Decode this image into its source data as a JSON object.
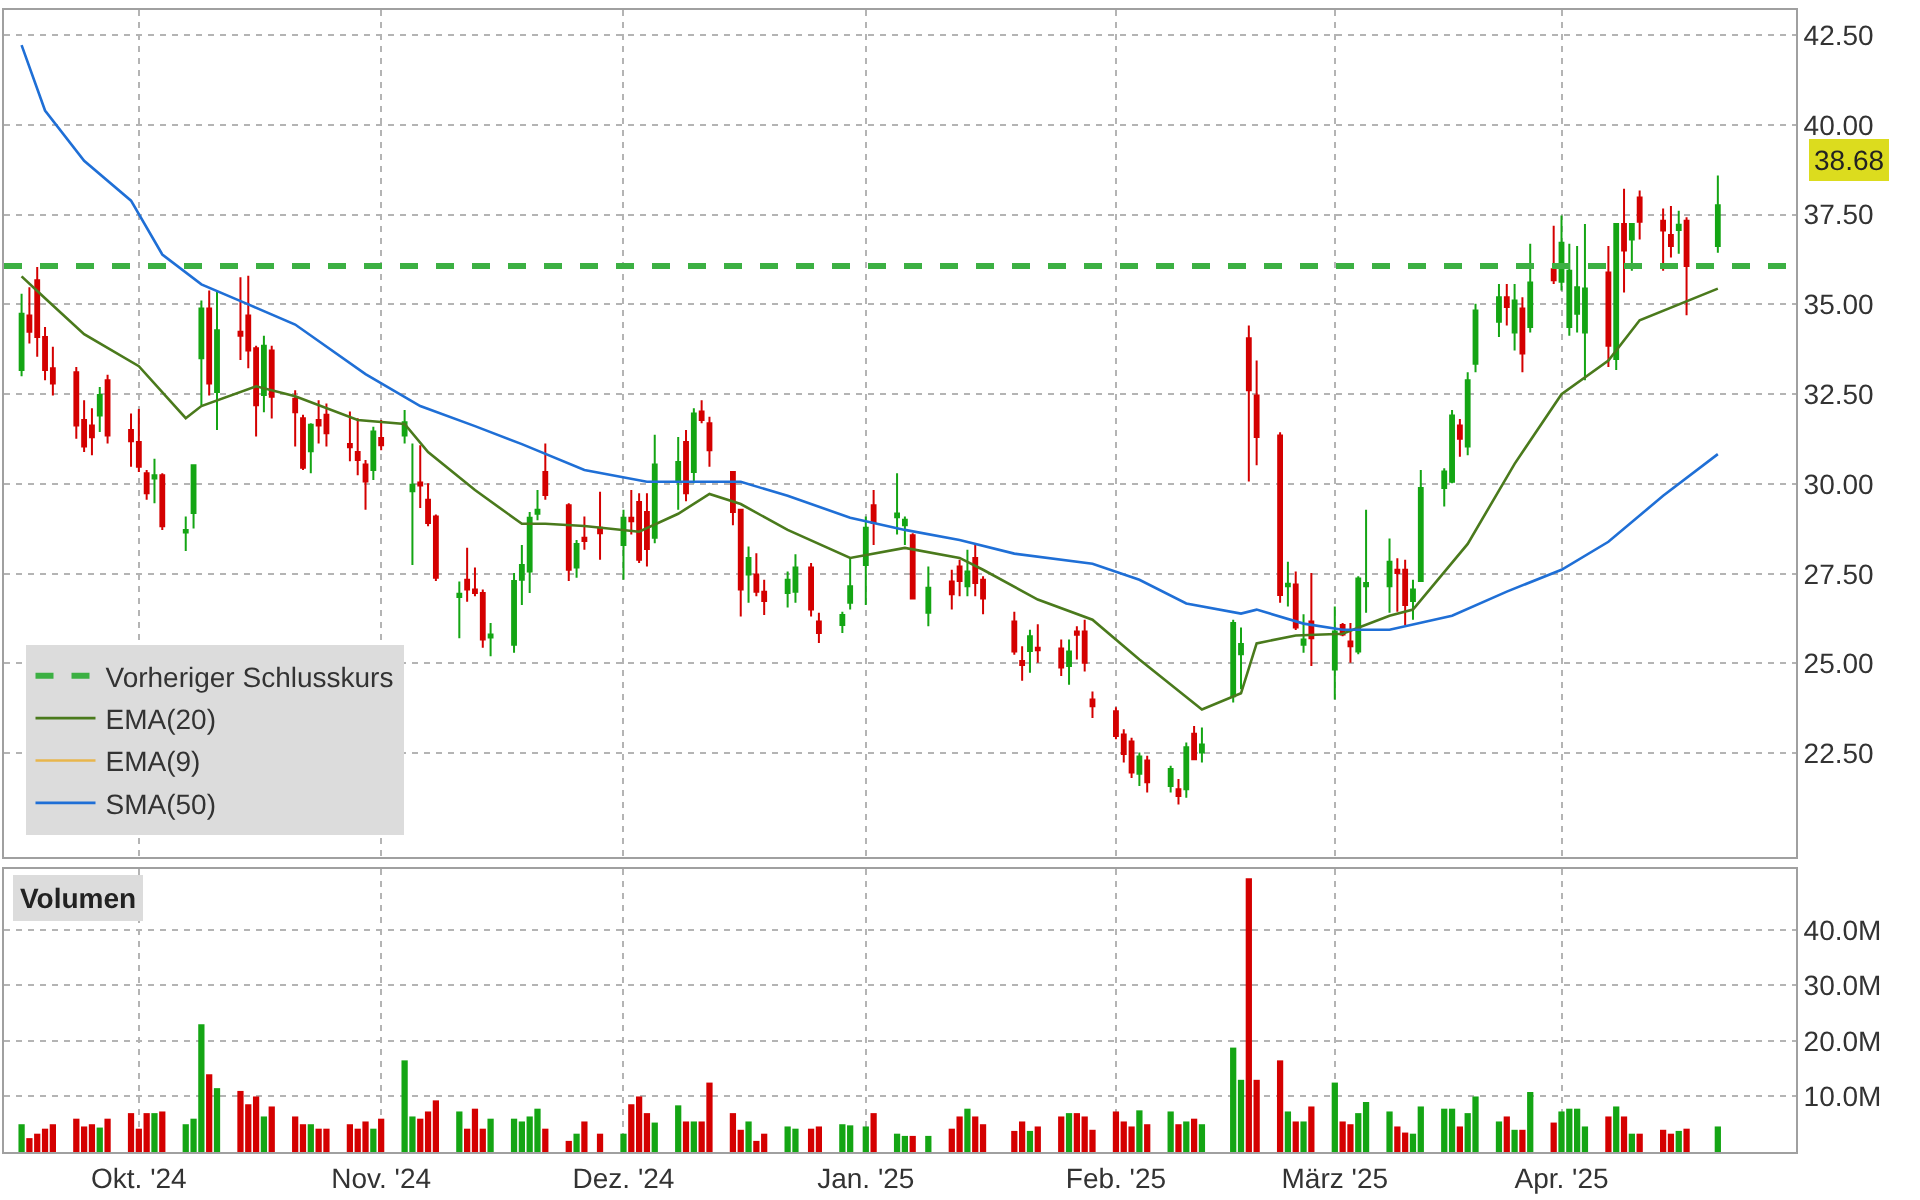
{
  "chart_data": [
    {
      "type": "candlestick",
      "x": [
        "2024-09-16",
        "2024-09-17",
        "2024-09-18",
        "2024-09-19",
        "2024-09-20",
        "2024-09-23",
        "2024-09-24",
        "2024-09-25",
        "2024-09-26",
        "2024-09-27",
        "2024-09-30",
        "2024-10-01",
        "2024-10-02",
        "2024-10-03",
        "2024-10-04",
        "2024-10-07",
        "2024-10-08",
        "2024-10-09",
        "2024-10-10",
        "2024-10-11",
        "2024-10-14",
        "2024-10-15",
        "2024-10-16",
        "2024-10-17",
        "2024-10-18",
        "2024-10-21",
        "2024-10-22",
        "2024-10-23",
        "2024-10-24",
        "2024-10-25",
        "2024-10-28",
        "2024-10-29",
        "2024-10-30",
        "2024-10-31",
        "2024-11-01",
        "2024-11-04",
        "2024-11-05",
        "2024-11-06",
        "2024-11-07",
        "2024-11-08",
        "2024-11-11",
        "2024-11-12",
        "2024-11-13",
        "2024-11-14",
        "2024-11-15",
        "2024-11-18",
        "2024-11-19",
        "2024-11-20",
        "2024-11-21",
        "2024-11-22",
        "2024-11-25",
        "2024-11-26",
        "2024-11-27",
        "2024-11-29",
        "2024-12-02",
        "2024-12-03",
        "2024-12-04",
        "2024-12-05",
        "2024-12-06",
        "2024-12-09",
        "2024-12-10",
        "2024-12-11",
        "2024-12-12",
        "2024-12-13",
        "2024-12-16",
        "2024-12-17",
        "2024-12-18",
        "2024-12-19",
        "2024-12-20",
        "2024-12-23",
        "2024-12-24",
        "2024-12-26",
        "2024-12-27",
        "2024-12-30",
        "2024-12-31",
        "2025-01-02",
        "2025-01-03",
        "2025-01-06",
        "2025-01-07",
        "2025-01-08",
        "2025-01-10",
        "2025-01-13",
        "2025-01-14",
        "2025-01-15",
        "2025-01-16",
        "2025-01-17",
        "2025-01-21",
        "2025-01-22",
        "2025-01-23",
        "2025-01-24",
        "2025-01-27",
        "2025-01-28",
        "2025-01-29",
        "2025-01-30",
        "2025-01-31",
        "2025-02-03",
        "2025-02-04",
        "2025-02-05",
        "2025-02-06",
        "2025-02-07",
        "2025-02-10",
        "2025-02-11",
        "2025-02-12",
        "2025-02-13",
        "2025-02-14",
        "2025-02-18",
        "2025-02-19",
        "2025-02-20",
        "2025-02-21",
        "2025-02-24",
        "2025-02-25",
        "2025-02-26",
        "2025-02-27",
        "2025-02-28",
        "2025-03-03",
        "2025-03-04",
        "2025-03-05",
        "2025-03-06",
        "2025-03-07",
        "2025-03-10",
        "2025-03-11",
        "2025-03-12",
        "2025-03-13",
        "2025-03-14",
        "2025-03-17",
        "2025-03-18",
        "2025-03-19",
        "2025-03-20",
        "2025-03-21",
        "2025-03-24",
        "2025-03-25",
        "2025-03-26",
        "2025-03-27",
        "2025-03-28",
        "2025-03-31",
        "2025-04-01",
        "2025-04-02",
        "2025-04-03",
        "2025-04-04",
        "2025-04-07",
        "2025-04-08",
        "2025-04-09",
        "2025-04-10",
        "2025-04-11",
        "2025-04-14",
        "2025-04-15",
        "2025-04-16",
        "2025-04-17",
        "2025-04-21"
      ],
      "ohlc": [
        [
          33.17,
          35.3,
          33.0,
          34.74
        ],
        [
          34.69,
          35.48,
          33.91,
          34.24
        ],
        [
          35.67,
          36.04,
          33.54,
          34.09
        ],
        [
          34.09,
          34.37,
          32.89,
          33.17
        ],
        [
          33.22,
          33.82,
          32.46,
          32.8
        ],
        [
          33.11,
          33.26,
          31.26,
          31.63
        ],
        [
          31.78,
          32.33,
          30.89,
          31.04
        ],
        [
          31.63,
          32.11,
          30.8,
          31.3
        ],
        [
          31.91,
          32.7,
          31.45,
          32.48
        ],
        [
          32.89,
          33.04,
          31.13,
          31.35
        ],
        [
          31.5,
          31.96,
          30.48,
          31.19
        ],
        [
          31.17,
          32.09,
          30.33,
          30.48
        ],
        [
          30.3,
          30.39,
          29.56,
          29.74
        ],
        [
          30.15,
          30.7,
          29.46,
          30.24
        ],
        [
          30.24,
          30.3,
          28.72,
          28.82
        ],
        [
          28.65,
          29.09,
          28.13,
          28.72
        ],
        [
          29.19,
          30.52,
          28.76,
          30.52
        ],
        [
          33.5,
          35.11,
          32.19,
          34.89
        ],
        [
          34.89,
          35.39,
          32.46,
          32.8
        ],
        [
          32.56,
          35.39,
          31.5,
          34.28
        ],
        [
          34.24,
          35.76,
          33.45,
          34.13
        ],
        [
          34.69,
          35.8,
          33.22,
          33.72
        ],
        [
          33.78,
          33.85,
          31.32,
          32.19
        ],
        [
          32.48,
          34.13,
          32.0,
          33.85
        ],
        [
          33.72,
          33.85,
          31.82,
          32.43
        ],
        [
          32.37,
          32.61,
          31.04,
          32.0
        ],
        [
          31.83,
          31.93,
          30.39,
          30.45
        ],
        [
          30.91,
          31.69,
          30.3,
          31.65
        ],
        [
          31.78,
          32.33,
          31.13,
          31.63
        ],
        [
          31.93,
          32.24,
          31.04,
          31.41
        ],
        [
          31.11,
          32.02,
          30.63,
          31.02
        ],
        [
          30.89,
          31.83,
          30.24,
          30.67
        ],
        [
          30.54,
          30.67,
          29.28,
          30.07
        ],
        [
          30.39,
          31.59,
          30.11,
          31.46
        ],
        [
          31.28,
          31.78,
          30.94,
          31.08
        ],
        [
          31.35,
          32.06,
          31.13,
          31.72
        ],
        [
          29.8,
          31.13,
          27.74,
          29.98
        ],
        [
          30.04,
          31.08,
          29.33,
          29.96
        ],
        [
          29.56,
          30.02,
          28.82,
          28.91
        ],
        [
          29.09,
          29.15,
          27.3,
          27.39
        ],
        [
          26.85,
          27.28,
          25.7,
          26.94
        ],
        [
          27.33,
          28.22,
          26.72,
          27.06
        ],
        [
          27.06,
          27.67,
          26.87,
          26.96
        ],
        [
          26.96,
          27.06,
          25.44,
          25.67
        ],
        [
          25.72,
          26.13,
          25.2,
          25.81
        ],
        [
          25.52,
          27.52,
          25.3,
          27.3
        ],
        [
          27.33,
          28.3,
          26.63,
          27.74
        ],
        [
          27.56,
          29.22,
          26.96,
          29.06
        ],
        [
          29.17,
          29.83,
          28.99,
          29.28
        ],
        [
          30.33,
          31.13,
          29.56,
          29.69
        ],
        [
          29.41,
          29.46,
          27.3,
          27.61
        ],
        [
          27.67,
          28.44,
          27.39,
          28.33
        ],
        [
          28.5,
          29.09,
          28.17,
          28.41
        ],
        [
          28.78,
          29.78,
          27.89,
          28.63
        ],
        [
          28.3,
          29.28,
          27.33,
          29.06
        ],
        [
          29.06,
          29.83,
          28.59,
          28.96
        ],
        [
          29.5,
          29.74,
          27.8,
          27.89
        ],
        [
          29.22,
          29.74,
          27.7,
          28.19
        ],
        [
          28.5,
          31.37,
          28.35,
          30.54
        ],
        [
          30.11,
          31.31,
          29.28,
          30.61
        ],
        [
          31.17,
          31.5,
          29.52,
          29.74
        ],
        [
          30.33,
          32.11,
          30.02,
          31.96
        ],
        [
          32.02,
          32.33,
          31.69,
          31.78
        ],
        [
          31.69,
          31.87,
          30.48,
          30.94
        ],
        [
          30.33,
          30.33,
          28.85,
          29.22
        ],
        [
          29.28,
          29.28,
          26.31,
          27.06
        ],
        [
          27.48,
          28.26,
          26.69,
          27.94
        ],
        [
          27.48,
          28.07,
          26.87,
          27.0
        ],
        [
          27.0,
          27.33,
          26.35,
          26.74
        ],
        [
          26.96,
          27.56,
          26.56,
          27.33
        ],
        [
          27.0,
          28.04,
          26.69,
          27.67
        ],
        [
          27.67,
          27.8,
          26.31,
          26.5
        ],
        [
          26.17,
          26.41,
          25.57,
          25.85
        ],
        [
          26.07,
          26.44,
          25.85,
          26.35
        ],
        [
          26.69,
          27.94,
          26.5,
          27.15
        ],
        [
          27.74,
          29.09,
          26.63,
          28.78
        ],
        [
          29.41,
          29.83,
          28.3,
          28.91
        ],
        [
          29.07,
          30.3,
          28.59,
          29.18
        ],
        [
          28.85,
          29.09,
          28.3,
          29.0
        ],
        [
          28.57,
          28.63,
          26.78,
          26.81
        ],
        [
          26.41,
          27.7,
          26.04,
          27.11
        ],
        [
          27.28,
          27.61,
          26.5,
          26.93
        ],
        [
          27.7,
          27.89,
          26.87,
          27.3
        ],
        [
          27.15,
          28.17,
          26.87,
          27.56
        ],
        [
          27.94,
          28.35,
          26.87,
          27.24
        ],
        [
          27.33,
          27.43,
          26.37,
          26.81
        ],
        [
          26.17,
          26.44,
          25.24,
          25.33
        ],
        [
          25.07,
          25.48,
          24.52,
          24.96
        ],
        [
          25.35,
          25.94,
          24.74,
          25.76
        ],
        [
          25.44,
          26.09,
          25.02,
          25.37
        ],
        [
          25.42,
          25.67,
          24.65,
          24.89
        ],
        [
          24.93,
          25.67,
          24.41,
          25.33
        ],
        [
          25.89,
          26.04,
          25.11,
          25.8
        ],
        [
          25.89,
          26.22,
          24.78,
          25.02
        ],
        [
          24.0,
          24.22,
          23.48,
          23.81
        ],
        [
          23.67,
          23.78,
          22.89,
          22.98
        ],
        [
          23.02,
          23.17,
          22.24,
          22.48
        ],
        [
          22.83,
          22.93,
          21.81,
          21.96
        ],
        [
          21.93,
          22.52,
          21.59,
          22.41
        ],
        [
          22.3,
          22.43,
          21.41,
          21.69
        ],
        [
          21.59,
          22.15,
          21.41,
          22.06
        ],
        [
          21.5,
          21.78,
          21.07,
          21.31
        ],
        [
          21.5,
          22.8,
          21.26,
          22.67
        ],
        [
          23.04,
          23.26,
          22.33,
          22.33
        ],
        [
          22.52,
          23.22,
          22.24,
          22.74
        ],
        [
          24.09,
          26.22,
          23.91,
          26.13
        ],
        [
          25.26,
          26.0,
          24.28,
          25.54
        ],
        [
          34.06,
          34.41,
          30.07,
          32.61
        ],
        [
          32.46,
          33.44,
          30.52,
          31.31
        ],
        [
          31.35,
          31.44,
          26.69,
          26.91
        ],
        [
          27.15,
          27.83,
          26.59,
          27.22
        ],
        [
          27.2,
          27.56,
          25.93,
          26.0
        ],
        [
          25.52,
          26.37,
          25.3,
          25.67
        ],
        [
          26.17,
          27.52,
          24.93,
          25.7
        ],
        [
          24.83,
          26.59,
          24.0,
          25.89
        ],
        [
          26.07,
          26.13,
          25.76,
          25.81
        ],
        [
          25.61,
          26.13,
          25.02,
          25.48
        ],
        [
          25.33,
          27.43,
          25.26,
          27.37
        ],
        [
          27.15,
          29.28,
          26.41,
          27.24
        ],
        [
          27.15,
          28.48,
          26.41,
          27.83
        ],
        [
          27.61,
          27.93,
          26.44,
          27.52
        ],
        [
          27.61,
          27.89,
          26.07,
          26.63
        ],
        [
          26.74,
          27.33,
          26.22,
          27.06
        ],
        [
          27.3,
          30.39,
          27.3,
          29.89
        ],
        [
          29.89,
          30.44,
          29.37,
          30.35
        ],
        [
          30.06,
          32.06,
          30.02,
          31.91
        ],
        [
          31.63,
          31.81,
          30.76,
          31.26
        ],
        [
          31.04,
          33.11,
          30.8,
          32.89
        ],
        [
          33.35,
          35.02,
          33.11,
          34.83
        ],
        [
          34.52,
          35.57,
          34.09,
          35.2
        ],
        [
          35.2,
          35.57,
          34.41,
          34.93
        ],
        [
          34.22,
          35.57,
          33.72,
          35.11
        ],
        [
          34.89,
          35.2,
          33.11,
          33.63
        ],
        [
          34.37,
          36.69,
          34.22,
          35.61
        ],
        [
          35.98,
          37.19,
          35.57,
          35.67
        ],
        [
          35.63,
          37.48,
          35.39,
          36.72
        ],
        [
          34.37,
          36.69,
          34.13,
          35.94
        ],
        [
          34.74,
          36.63,
          34.22,
          35.48
        ],
        [
          34.22,
          37.24,
          32.89,
          35.44
        ],
        [
          35.89,
          36.63,
          33.26,
          33.85
        ],
        [
          33.48,
          37.24,
          33.17,
          37.24
        ],
        [
          37.24,
          38.22,
          35.33,
          36.5
        ],
        [
          36.81,
          37.24,
          35.94,
          37.24
        ],
        [
          37.98,
          38.17,
          36.81,
          37.3
        ],
        [
          37.33,
          37.67,
          35.94,
          37.06
        ],
        [
          36.93,
          37.74,
          36.31,
          36.63
        ],
        [
          37.07,
          37.61,
          36.41,
          37.22
        ],
        [
          37.33,
          37.43,
          34.7,
          36.07
        ],
        [
          36.63,
          38.59,
          36.44,
          37.76
        ]
      ],
      "colors": [
        "#14a514",
        "#d40000",
        "#d40000",
        "#d40000",
        "#d40000",
        "#d40000",
        "#d40000",
        "#d40000",
        "#14a514",
        "#d40000",
        "#d40000",
        "#d40000",
        "#d40000",
        "#14a514",
        "#d40000",
        "#14a514",
        "#14a514",
        "#14a514",
        "#d40000",
        "#14a514",
        "#d40000",
        "#d40000",
        "#d40000",
        "#14a514",
        "#d40000",
        "#d40000",
        "#d40000",
        "#14a514",
        "#d40000",
        "#d40000",
        "#d40000",
        "#d40000",
        "#d40000",
        "#14a514",
        "#d40000",
        "#14a514",
        "#14a514",
        "#d40000",
        "#d40000",
        "#d40000",
        "#14a514",
        "#d40000",
        "#d40000",
        "#d40000",
        "#14a514",
        "#14a514",
        "#14a514",
        "#14a514",
        "#14a514",
        "#d40000",
        "#d40000",
        "#14a514",
        "#d40000",
        "#d40000",
        "#14a514",
        "#d40000",
        "#d40000",
        "#d40000",
        "#14a514",
        "#14a514",
        "#d40000",
        "#14a514",
        "#d40000",
        "#d40000",
        "#d40000",
        "#d40000",
        "#14a514",
        "#d40000",
        "#d40000",
        "#14a514",
        "#14a514",
        "#d40000",
        "#d40000",
        "#14a514",
        "#14a514",
        "#14a514",
        "#d40000",
        "#14a514",
        "#14a514",
        "#d40000",
        "#14a514",
        "#d40000",
        "#d40000",
        "#14a514",
        "#d40000",
        "#d40000",
        "#d40000",
        "#d40000",
        "#14a514",
        "#d40000",
        "#d40000",
        "#14a514",
        "#d40000",
        "#d40000",
        "#d40000",
        "#d40000",
        "#d40000",
        "#d40000",
        "#14a514",
        "#d40000",
        "#14a514",
        "#d40000",
        "#14a514",
        "#d40000",
        "#14a514",
        "#14a514",
        "#14a514",
        "#d40000",
        "#d40000",
        "#d40000",
        "#14a514",
        "#d40000",
        "#14a514",
        "#d40000",
        "#14a514",
        "#d40000",
        "#d40000",
        "#14a514",
        "#14a514",
        "#14a514",
        "#d40000",
        "#d40000",
        "#14a514",
        "#14a514",
        "#14a514",
        "#14a514",
        "#d40000",
        "#14a514",
        "#14a514",
        "#14a514",
        "#d40000",
        "#14a514",
        "#d40000",
        "#14a514",
        "#d40000",
        "#14a514",
        "#14a514",
        "#14a514",
        "#14a514",
        "#d40000",
        "#14a514",
        "#d40000",
        "#14a514",
        "#d40000",
        "#d40000",
        "#d40000",
        "#14a514",
        "#d40000",
        "#14a514"
      ],
      "series": [
        {
          "name": "EMA(20)",
          "type": "line",
          "color": "#4a7a1c",
          "x": [
            "2024-09-16",
            "2024-09-19",
            "2024-09-24",
            "2024-10-01",
            "2024-10-07",
            "2024-10-09",
            "2024-10-16",
            "2024-10-21",
            "2024-10-29",
            "2024-11-04",
            "2024-11-07",
            "2024-11-13",
            "2024-11-19",
            "2024-11-22",
            "2024-11-27",
            "2024-12-04",
            "2024-12-09",
            "2024-12-13",
            "2024-12-17",
            "2024-12-23",
            "2024-12-31",
            "2025-01-07",
            "2025-01-14",
            "2025-01-17",
            "2025-01-24",
            "2025-01-31",
            "2025-02-06",
            "2025-02-14",
            "2025-02-19",
            "2025-02-21",
            "2025-02-26",
            "2025-03-04",
            "2025-03-10",
            "2025-03-13",
            "2025-03-20",
            "2025-03-26",
            "2025-04-01",
            "2025-04-07",
            "2025-04-11",
            "2025-04-21"
          ],
          "values": [
            35.78,
            35.17,
            34.17,
            33.28,
            31.83,
            32.17,
            32.72,
            32.44,
            31.78,
            31.67,
            30.89,
            29.83,
            28.89,
            28.89,
            28.83,
            28.67,
            29.17,
            29.72,
            29.44,
            28.72,
            27.94,
            28.22,
            27.94,
            27.61,
            26.78,
            26.22,
            25.11,
            23.72,
            24.17,
            25.56,
            25.78,
            25.83,
            26.33,
            26.5,
            28.33,
            30.56,
            32.5,
            33.44,
            34.56,
            35.44
          ]
        },
        {
          "name": "EMA(9)",
          "type": "line",
          "color": "#e8b64c",
          "values": [
            null,
            null,
            null,
            null,
            null,
            null,
            null,
            null,
            null,
            null,
            null,
            null,
            null,
            null,
            null,
            null,
            null,
            null,
            null,
            null,
            null,
            null,
            null,
            null,
            null,
            null,
            null,
            null,
            null,
            null,
            null,
            null,
            null,
            null,
            null,
            null,
            null,
            null,
            null,
            null,
            null,
            null,
            null,
            null,
            null,
            null,
            null,
            null,
            null,
            null,
            null,
            null,
            null,
            null,
            null,
            null,
            null,
            null,
            null,
            null,
            null,
            null,
            null,
            null,
            null,
            null,
            null,
            null,
            null,
            null,
            null,
            null,
            null,
            null,
            null,
            null,
            null,
            null,
            null,
            null,
            null,
            null,
            null,
            null,
            null,
            null,
            null,
            null,
            null,
            null,
            null,
            null,
            null,
            null,
            null,
            null,
            null,
            null,
            null,
            null,
            null,
            null,
            null,
            null,
            null,
            null,
            null,
            null,
            null,
            null,
            null,
            null,
            null,
            null,
            null,
            null,
            null,
            null,
            null,
            null,
            null,
            null,
            null,
            null,
            null,
            null,
            null,
            null,
            null,
            null,
            null,
            null,
            null,
            null,
            null,
            null,
            null,
            null,
            null,
            null,
            null,
            null,
            null,
            null,
            null,
            null,
            null,
            null,
            null
          ]
        },
        {
          "name": "SMA(50)",
          "type": "line",
          "color": "#1f6fd6",
          "x": [
            "2024-09-16",
            "2024-09-19",
            "2024-09-24",
            "2024-09-30",
            "2024-10-04",
            "2024-10-09",
            "2024-10-15",
            "2024-10-21",
            "2024-10-30",
            "2024-11-06",
            "2024-11-13",
            "2024-11-19",
            "2024-11-27",
            "2024-12-05",
            "2024-12-12",
            "2024-12-17",
            "2024-12-23",
            "2024-12-31",
            "2025-01-07",
            "2025-01-14",
            "2025-01-21",
            "2025-01-31",
            "2025-02-06",
            "2025-02-12",
            "2025-02-19",
            "2025-02-21",
            "2025-02-27",
            "2025-03-04",
            "2025-03-10",
            "2025-03-18",
            "2025-03-25",
            "2025-04-01",
            "2025-04-07",
            "2025-04-14",
            "2025-04-21"
          ],
          "values": [
            42.22,
            40.4,
            39.0,
            37.89,
            36.39,
            35.56,
            35.0,
            34.44,
            33.06,
            32.17,
            31.61,
            31.11,
            30.39,
            30.06,
            30.06,
            30.06,
            29.67,
            29.06,
            28.72,
            28.44,
            28.06,
            27.78,
            27.33,
            26.67,
            26.39,
            26.5,
            26.11,
            25.94,
            25.94,
            26.33,
            27.0,
            27.61,
            28.39,
            29.67,
            30.83
          ]
        }
      ],
      "ref_lines": [
        {
          "axis": "y",
          "value": 36.07,
          "label": "Vorheriger Schlusskurs",
          "color": "#3cb043",
          "line_style": "dashed"
        }
      ],
      "annotations": [
        "38.68"
      ],
      "xlim": [
        "2024-09-13T18:00",
        "2025-05-01"
      ],
      "xticks": [
        {
          "value": "2024-10-01",
          "label": null
        },
        {
          "value": "2024-11-01",
          "label": null
        },
        {
          "value": "2024-12-02",
          "label": null
        },
        {
          "value": "2025-01-02",
          "label": null
        },
        {
          "value": "2025-02-03",
          "label": null
        },
        {
          "value": "2025-03-03",
          "label": null
        },
        {
          "value": "2025-04-01",
          "label": null
        }
      ],
      "ylim": [
        19.6,
        43.2
      ],
      "yticks": [
        {
          "value": 22.5,
          "label": "22.50"
        },
        {
          "value": 25,
          "label": "25.00"
        },
        {
          "value": 27.5,
          "label": "27.50"
        },
        {
          "value": 30,
          "label": "30.00"
        },
        {
          "value": 32.5,
          "label": "32.50"
        },
        {
          "value": 35,
          "label": "35.00"
        },
        {
          "value": 37.5,
          "label": "37.50"
        },
        {
          "value": 40,
          "label": "40.00"
        },
        {
          "value": 42.5,
          "label": "42.50"
        }
      ],
      "tick_labels": "y",
      "grid": true,
      "legend": "bottom left"
    },
    {
      "type": "bar",
      "title": "Volumen",
      "x": [
        "2024-09-16",
        "2024-09-17",
        "2024-09-18",
        "2024-09-19",
        "2024-09-20",
        "2024-09-23",
        "2024-09-24",
        "2024-09-25",
        "2024-09-26",
        "2024-09-27",
        "2024-09-30",
        "2024-10-01",
        "2024-10-02",
        "2024-10-03",
        "2024-10-04",
        "2024-10-07",
        "2024-10-08",
        "2024-10-09",
        "2024-10-10",
        "2024-10-11",
        "2024-10-14",
        "2024-10-15",
        "2024-10-16",
        "2024-10-17",
        "2024-10-18",
        "2024-10-21",
        "2024-10-22",
        "2024-10-23",
        "2024-10-24",
        "2024-10-25",
        "2024-10-28",
        "2024-10-29",
        "2024-10-30",
        "2024-10-31",
        "2024-11-01",
        "2024-11-04",
        "2024-11-05",
        "2024-11-06",
        "2024-11-07",
        "2024-11-08",
        "2024-11-11",
        "2024-11-12",
        "2024-11-13",
        "2024-11-14",
        "2024-11-15",
        "2024-11-18",
        "2024-11-19",
        "2024-11-20",
        "2024-11-21",
        "2024-11-22",
        "2024-11-25",
        "2024-11-26",
        "2024-11-27",
        "2024-11-29",
        "2024-12-02",
        "2024-12-03",
        "2024-12-04",
        "2024-12-05",
        "2024-12-06",
        "2024-12-09",
        "2024-12-10",
        "2024-12-11",
        "2024-12-12",
        "2024-12-13",
        "2024-12-16",
        "2024-12-17",
        "2024-12-18",
        "2024-12-19",
        "2024-12-20",
        "2024-12-23",
        "2024-12-24",
        "2024-12-26",
        "2024-12-27",
        "2024-12-30",
        "2024-12-31",
        "2025-01-02",
        "2025-01-03",
        "2025-01-06",
        "2025-01-07",
        "2025-01-08",
        "2025-01-10",
        "2025-01-13",
        "2025-01-14",
        "2025-01-15",
        "2025-01-16",
        "2025-01-17",
        "2025-01-21",
        "2025-01-22",
        "2025-01-23",
        "2025-01-24",
        "2025-01-27",
        "2025-01-28",
        "2025-01-29",
        "2025-01-30",
        "2025-01-31",
        "2025-02-03",
        "2025-02-04",
        "2025-02-05",
        "2025-02-06",
        "2025-02-07",
        "2025-02-10",
        "2025-02-11",
        "2025-02-12",
        "2025-02-13",
        "2025-02-14",
        "2025-02-18",
        "2025-02-19",
        "2025-02-20",
        "2025-02-21",
        "2025-02-24",
        "2025-02-25",
        "2025-02-26",
        "2025-02-27",
        "2025-02-28",
        "2025-03-03",
        "2025-03-04",
        "2025-03-05",
        "2025-03-06",
        "2025-03-07",
        "2025-03-10",
        "2025-03-11",
        "2025-03-12",
        "2025-03-13",
        "2025-03-14",
        "2025-03-17",
        "2025-03-18",
        "2025-03-19",
        "2025-03-20",
        "2025-03-21",
        "2025-03-24",
        "2025-03-25",
        "2025-03-26",
        "2025-03-27",
        "2025-03-28",
        "2025-03-31",
        "2025-04-01",
        "2025-04-02",
        "2025-04-03",
        "2025-04-04",
        "2025-04-07",
        "2025-04-08",
        "2025-04-09",
        "2025-04-10",
        "2025-04-11",
        "2025-04-14",
        "2025-04-15",
        "2025-04-16",
        "2025-04-17",
        "2025-04-21"
      ],
      "values": [
        5,
        2.5,
        3.3,
        4.2,
        5,
        6,
        4.6,
        5,
        4.4,
        6,
        7,
        4.2,
        7,
        7,
        7.3,
        5,
        6,
        23,
        14,
        11.5,
        11,
        8.6,
        10,
        6.4,
        8.2,
        6.4,
        5,
        5,
        4.2,
        4.2,
        5,
        4.2,
        5.5,
        4.2,
        6,
        16.5,
        6.4,
        6,
        7.3,
        9.3,
        7.3,
        4.2,
        7.8,
        4.2,
        6,
        6,
        5.5,
        6.4,
        7.8,
        4.2,
        2,
        3.3,
        5.5,
        3.3,
        3.3,
        8.6,
        10,
        7,
        5.3,
        8.4,
        5.5,
        5.5,
        5.5,
        12.5,
        7,
        4,
        5.5,
        2,
        3.3,
        4.6,
        4.2,
        4.2,
        4.6,
        5,
        4.8,
        4.6,
        7,
        3.3,
        2.9,
        2.9,
        2.9,
        4.2,
        6.4,
        7.8,
        6.4,
        5,
        3.8,
        5.5,
        3.8,
        4.6,
        6.4,
        7,
        7,
        6.4,
        4,
        7.3,
        5.5,
        4.6,
        7.5,
        5,
        7.3,
        5,
        5.5,
        6,
        5,
        18.8,
        13,
        49.3,
        13,
        16.5,
        7.3,
        5.5,
        5.5,
        8.2,
        12.5,
        5.5,
        5,
        7,
        9,
        7.3,
        4.6,
        3.5,
        3.3,
        8.2,
        7.8,
        7.8,
        4.6,
        7,
        10,
        5.5,
        6.4,
        4,
        4,
        10.8,
        5.3,
        7.3,
        7.8,
        7.8,
        4.6,
        6.4,
        8.2,
        6.4,
        3.3,
        3.3,
        4,
        3.3,
        3.8,
        4.2,
        4.6
      ],
      "colors": [
        "#14a514",
        "#d40000",
        "#d40000",
        "#d40000",
        "#d40000",
        "#d40000",
        "#d40000",
        "#d40000",
        "#14a514",
        "#d40000",
        "#d40000",
        "#d40000",
        "#d40000",
        "#14a514",
        "#d40000",
        "#14a514",
        "#14a514",
        "#14a514",
        "#d40000",
        "#14a514",
        "#d40000",
        "#d40000",
        "#d40000",
        "#14a514",
        "#d40000",
        "#d40000",
        "#d40000",
        "#14a514",
        "#d40000",
        "#d40000",
        "#d40000",
        "#d40000",
        "#d40000",
        "#14a514",
        "#d40000",
        "#14a514",
        "#14a514",
        "#d40000",
        "#d40000",
        "#d40000",
        "#14a514",
        "#d40000",
        "#d40000",
        "#d40000",
        "#14a514",
        "#14a514",
        "#14a514",
        "#14a514",
        "#14a514",
        "#d40000",
        "#d40000",
        "#14a514",
        "#d40000",
        "#d40000",
        "#14a514",
        "#d40000",
        "#d40000",
        "#d40000",
        "#14a514",
        "#14a514",
        "#d40000",
        "#14a514",
        "#d40000",
        "#d40000",
        "#d40000",
        "#d40000",
        "#14a514",
        "#d40000",
        "#d40000",
        "#14a514",
        "#14a514",
        "#d40000",
        "#d40000",
        "#14a514",
        "#14a514",
        "#14a514",
        "#d40000",
        "#14a514",
        "#14a514",
        "#d40000",
        "#14a514",
        "#d40000",
        "#d40000",
        "#14a514",
        "#d40000",
        "#d40000",
        "#d40000",
        "#d40000",
        "#14a514",
        "#d40000",
        "#d40000",
        "#14a514",
        "#d40000",
        "#d40000",
        "#d40000",
        "#d40000",
        "#d40000",
        "#d40000",
        "#14a514",
        "#d40000",
        "#14a514",
        "#d40000",
        "#14a514",
        "#d40000",
        "#14a514",
        "#14a514",
        "#14a514",
        "#d40000",
        "#d40000",
        "#d40000",
        "#14a514",
        "#d40000",
        "#14a514",
        "#d40000",
        "#14a514",
        "#d40000",
        "#d40000",
        "#14a514",
        "#14a514",
        "#14a514",
        "#d40000",
        "#d40000",
        "#14a514",
        "#14a514",
        "#14a514",
        "#14a514",
        "#d40000",
        "#14a514",
        "#14a514",
        "#14a514",
        "#d40000",
        "#14a514",
        "#d40000",
        "#14a514",
        "#d40000",
        "#14a514",
        "#14a514",
        "#14a514",
        "#14a514",
        "#d40000",
        "#14a514",
        "#d40000",
        "#14a514",
        "#d40000",
        "#d40000",
        "#d40000",
        "#14a514",
        "#d40000",
        "#14a514"
      ],
      "xlim": [
        "2024-09-13T18:00",
        "2025-05-01"
      ],
      "xticks": [
        {
          "value": "2024-10-01",
          "label": "Okt. '24"
        },
        {
          "value": "2024-11-01",
          "label": "Nov. '24"
        },
        {
          "value": "2024-12-02",
          "label": "Dez. '24"
        },
        {
          "value": "2025-01-02",
          "label": "Jan. '25"
        },
        {
          "value": "2025-02-03",
          "label": "Feb. '25"
        },
        {
          "value": "2025-03-03",
          "label": "März '25"
        },
        {
          "value": "2025-04-01",
          "label": "Apr. '25"
        }
      ],
      "ylim": [
        0,
        51
      ],
      "yticks": [
        {
          "value": 10,
          "label": "10.0M"
        },
        {
          "value": 20,
          "label": "20.0M"
        },
        {
          "value": 30,
          "label": "30.0M"
        },
        {
          "value": 40,
          "label": "40.0M"
        }
      ],
      "grid": true
    }
  ]
}
